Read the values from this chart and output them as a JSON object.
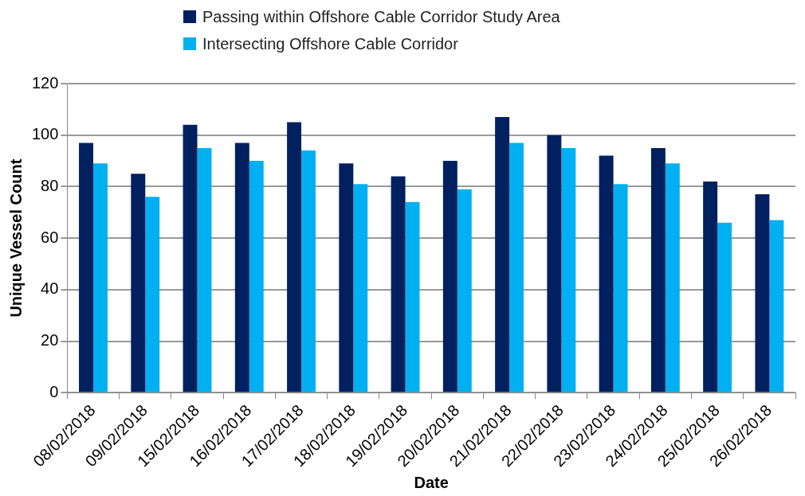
{
  "chart_data": {
    "type": "bar",
    "xlabel": "Date",
    "ylabel": "Unique Vessel Count",
    "categories": [
      "08/02/2018",
      "09/02/2018",
      "15/02/2018",
      "16/02/2018",
      "17/02/2018",
      "18/02/2018",
      "19/02/2018",
      "20/02/2018",
      "21/02/2018",
      "22/02/2018",
      "23/02/2018",
      "24/02/2018",
      "25/02/2018",
      "26/02/2018"
    ],
    "series": [
      {
        "name": "Passing within Offshore Cable Corridor Study Area",
        "color": "#002060",
        "values": [
          97,
          85,
          104,
          97,
          105,
          89,
          84,
          90,
          107,
          100,
          92,
          95,
          82,
          77
        ]
      },
      {
        "name": "Intersecting Offshore Cable Corridor",
        "color": "#00b0f0",
        "values": [
          89,
          76,
          95,
          90,
          94,
          81,
          74,
          79,
          97,
          95,
          81,
          89,
          66,
          67
        ]
      }
    ],
    "ylim": [
      0,
      120
    ],
    "yticks": [
      0,
      20,
      40,
      60,
      80,
      100,
      120
    ],
    "grid": "y",
    "legend": "top"
  }
}
